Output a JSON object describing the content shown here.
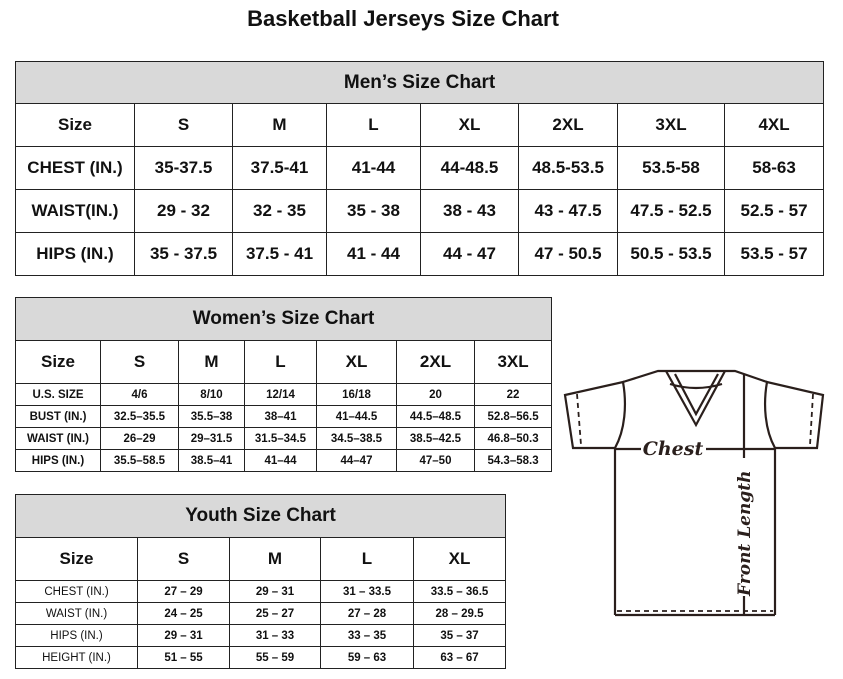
{
  "title": "Basketball Jerseys Size Chart",
  "men": {
    "title": "Men’s Size Chart",
    "header": [
      "Size",
      "S",
      "M",
      "L",
      "XL",
      "2XL",
      "3XL",
      "4XL"
    ],
    "rows": [
      [
        "CHEST (IN.)",
        "35-37.5",
        "37.5-41",
        "41-44",
        "44-48.5",
        "48.5-53.5",
        "53.5-58",
        "58-63"
      ],
      [
        "WAIST(IN.)",
        "29 - 32",
        "32 - 35",
        "35 - 38",
        "38 - 43",
        "43 - 47.5",
        "47.5 - 52.5",
        "52.5 - 57"
      ],
      [
        "HIPS (IN.)",
        "35 - 37.5",
        "37.5 - 41",
        "41 - 44",
        "44 - 47",
        "47 - 50.5",
        "50.5 - 53.5",
        "53.5 - 57"
      ]
    ]
  },
  "women": {
    "title": "Women’s Size Chart",
    "header": [
      "Size",
      "S",
      "M",
      "L",
      "XL",
      "2XL",
      "3XL"
    ],
    "rows": [
      [
        "U.S. SIZE",
        "4/6",
        "8/10",
        "12/14",
        "16/18",
        "20",
        "22"
      ],
      [
        "BUST (IN.)",
        "32.5–35.5",
        "35.5–38",
        "38–41",
        "41–44.5",
        "44.5–48.5",
        "52.8–56.5"
      ],
      [
        "WAIST (IN.)",
        "26–29",
        "29–31.5",
        "31.5–34.5",
        "34.5–38.5",
        "38.5–42.5",
        "46.8–50.3"
      ],
      [
        "HIPS (IN.)",
        "35.5–58.5",
        "38.5–41",
        "41–44",
        "44–47",
        "47–50",
        "54.3–58.3"
      ]
    ]
  },
  "youth": {
    "title": "Youth Size Chart",
    "header": [
      "Size",
      "S",
      "M",
      "L",
      "XL"
    ],
    "rows": [
      [
        "CHEST (IN.)",
        "27 – 29",
        "29 – 31",
        "31 – 33.5",
        "33.5 – 36.5"
      ],
      [
        "WAIST (IN.)",
        "24 – 25",
        "25 – 27",
        "27 – 28",
        "28 – 29.5"
      ],
      [
        "HIPS (IN.)",
        "29 – 31",
        "31 – 33",
        "33 – 35",
        "35 – 37"
      ],
      [
        "HEIGHT (IN.)",
        "51 – 55",
        "55 – 59",
        "59 – 63",
        "63 – 67"
      ]
    ]
  },
  "diagram": {
    "chest_label": "Chest",
    "front_length_label": "Front Length",
    "icon": "tshirt-icon"
  }
}
